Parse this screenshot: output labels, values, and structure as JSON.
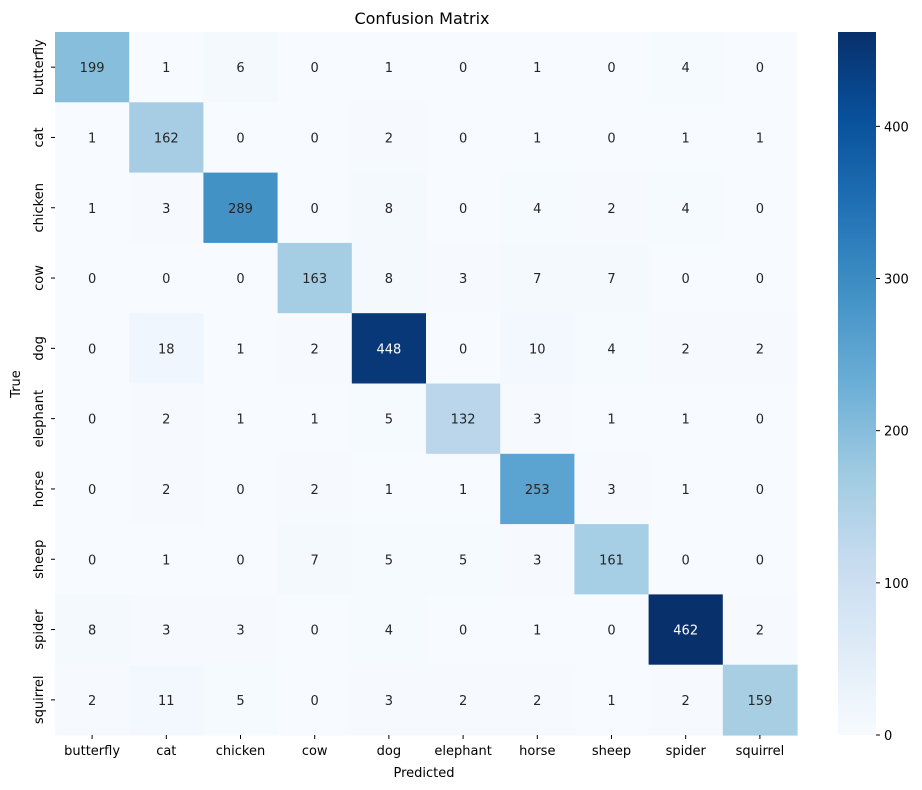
{
  "chart_data": {
    "type": "heatmap",
    "title": "Confusion Matrix",
    "xlabel": "Predicted",
    "ylabel": "True",
    "x_categories": [
      "butterfly",
      "cat",
      "chicken",
      "cow",
      "dog",
      "elephant",
      "horse",
      "sheep",
      "spider",
      "squirrel"
    ],
    "y_categories": [
      "butterfly",
      "cat",
      "chicken",
      "cow",
      "dog",
      "elephant",
      "horse",
      "sheep",
      "spider",
      "squirrel"
    ],
    "values": [
      [
        199,
        1,
        6,
        0,
        1,
        0,
        1,
        0,
        4,
        0
      ],
      [
        1,
        162,
        0,
        0,
        2,
        0,
        1,
        0,
        1,
        1
      ],
      [
        1,
        3,
        289,
        0,
        8,
        0,
        4,
        2,
        4,
        0
      ],
      [
        0,
        0,
        0,
        163,
        8,
        3,
        7,
        7,
        0,
        0
      ],
      [
        0,
        18,
        1,
        2,
        448,
        0,
        10,
        4,
        2,
        2
      ],
      [
        0,
        2,
        1,
        1,
        5,
        132,
        3,
        1,
        1,
        0
      ],
      [
        0,
        2,
        0,
        2,
        1,
        1,
        253,
        3,
        1,
        0
      ],
      [
        0,
        1,
        0,
        7,
        5,
        5,
        3,
        161,
        0,
        0
      ],
      [
        8,
        3,
        3,
        0,
        4,
        0,
        1,
        0,
        462,
        2
      ],
      [
        2,
        11,
        5,
        0,
        3,
        2,
        2,
        1,
        2,
        159
      ]
    ],
    "colormap": "Blues",
    "vmin": 0,
    "vmax": 462,
    "colorbar_ticks": [
      0,
      100,
      200,
      300,
      400
    ],
    "annotate": true,
    "grid": false
  }
}
